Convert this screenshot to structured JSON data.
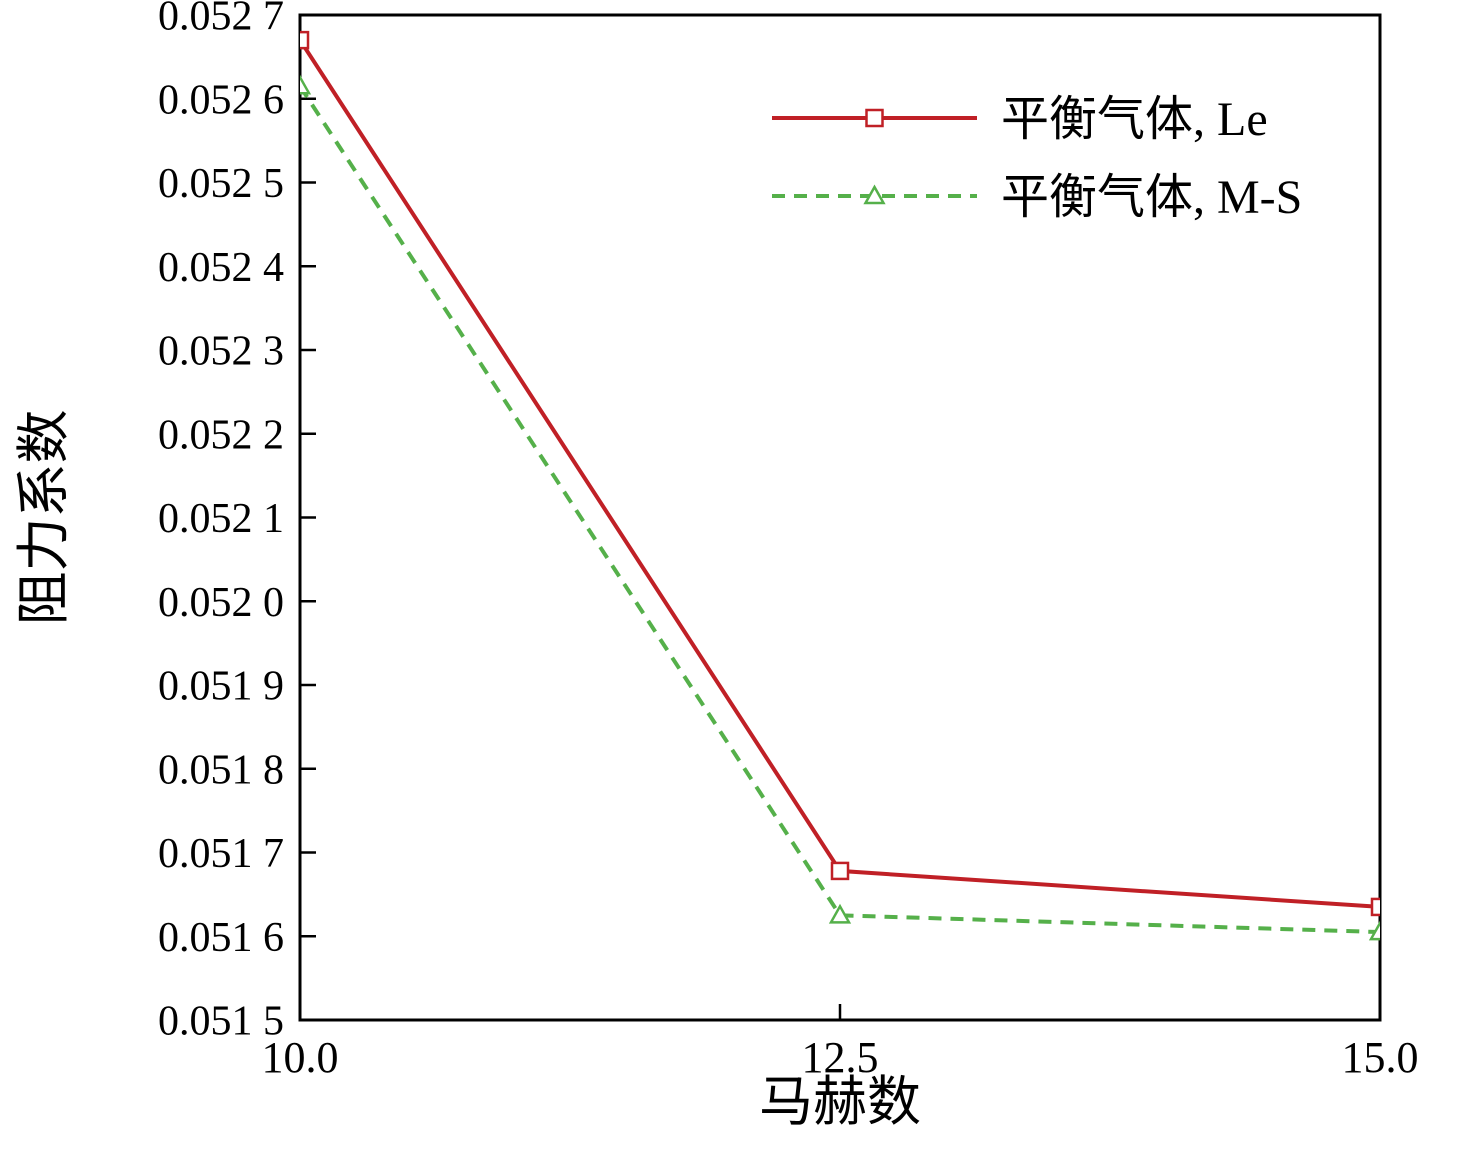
{
  "chart_data": {
    "type": "line",
    "title": "",
    "xlabel": "马赫数",
    "ylabel": "阻力系数",
    "x": [
      10.0,
      12.5,
      15.0
    ],
    "series": [
      {
        "name": "平衡气体, Le",
        "values": [
          0.05267,
          0.051678,
          0.051635
        ],
        "color": "#c02026",
        "line_style": "solid",
        "marker": "square",
        "marker_fill": "#ffffff"
      },
      {
        "name": "平衡气体, M-S",
        "values": [
          0.052615,
          0.051625,
          0.051605
        ],
        "color": "#55b04a",
        "line_style": "dashed",
        "marker": "triangle",
        "marker_fill": "#ffffff"
      }
    ],
    "xlim": [
      10.0,
      15.0
    ],
    "ylim": [
      0.0515,
      0.0527
    ],
    "x_ticks": [
      {
        "value": 10.0,
        "label": "10.0"
      },
      {
        "value": 12.5,
        "label": "12.5"
      },
      {
        "value": 15.0,
        "label": "15.0"
      }
    ],
    "y_ticks": [
      {
        "value": 0.0515,
        "label": "0.051 5"
      },
      {
        "value": 0.0516,
        "label": "0.051 6"
      },
      {
        "value": 0.0517,
        "label": "0.051 7"
      },
      {
        "value": 0.0518,
        "label": "0.051 8"
      },
      {
        "value": 0.0519,
        "label": "0.051 9"
      },
      {
        "value": 0.052,
        "label": "0.052 0"
      },
      {
        "value": 0.0521,
        "label": "0.052 1"
      },
      {
        "value": 0.0522,
        "label": "0.052 2"
      },
      {
        "value": 0.0523,
        "label": "0.052 3"
      },
      {
        "value": 0.0524,
        "label": "0.052 4"
      },
      {
        "value": 0.0525,
        "label": "0.052 5"
      },
      {
        "value": 0.0526,
        "label": "0.052 6"
      },
      {
        "value": 0.0527,
        "label": "0.052 7"
      }
    ],
    "grid": false,
    "legend_position": "upper-right"
  },
  "colors": {
    "axis": "#000000",
    "background": "#ffffff",
    "text": "#000000"
  }
}
